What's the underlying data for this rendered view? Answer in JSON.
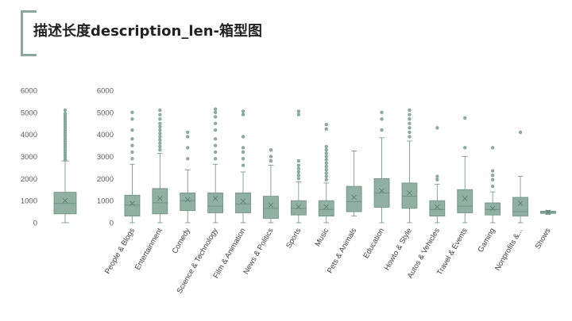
{
  "title": "描述长度description_len-箱型图",
  "colors": {
    "box_fill": "#8fb0a2",
    "box_stroke": "#6b8f7f",
    "accent": "#8aa89a"
  },
  "chart_data": [
    {
      "type": "box",
      "categories": [
        ""
      ],
      "ylim": [
        0,
        6000
      ],
      "yticks": [
        "0",
        "1000",
        "2000",
        "3000",
        "4000",
        "5000",
        "6000"
      ],
      "boxes": [
        {
          "min": 0,
          "q1": 400,
          "median": 870,
          "q3": 1380,
          "max": 2800,
          "mean": 1000,
          "outliers": [
            2850,
            2950,
            3050,
            3150,
            3250,
            3350,
            3450,
            3550,
            3650,
            3750,
            3850,
            3950,
            4050,
            4150,
            4250,
            4350,
            4450,
            4550,
            4650,
            4750,
            4850,
            4950,
            5100
          ]
        }
      ]
    },
    {
      "type": "box",
      "ylim": [
        0,
        6000
      ],
      "yticks": [
        "0",
        "1000",
        "2000",
        "3000",
        "4000",
        "5000",
        "6000"
      ],
      "categories": [
        "People & Blogs",
        "Entertainment",
        "Comedy",
        "Science & Technology",
        "Film & Animation",
        "News & Politics",
        "Sports",
        "Music",
        "Pets & Animals",
        "Education",
        "Howto & Style",
        "Autos & Vehicles",
        "Travel & Events",
        "Gaming",
        "Nonprofits &...",
        "Shows"
      ],
      "boxes": [
        {
          "min": 0,
          "q1": 300,
          "median": 800,
          "q3": 1250,
          "max": 2650,
          "mean": 880,
          "outliers": [
            2900,
            3200,
            3500,
            3800,
            4200,
            4700,
            5000
          ]
        },
        {
          "min": 0,
          "q1": 400,
          "median": 900,
          "q3": 1550,
          "max": 3150,
          "mean": 1100,
          "outliers": [
            3300,
            3450,
            3600,
            3750,
            3900,
            4050,
            4200,
            4350,
            4500,
            4700,
            4900,
            5100
          ]
        },
        {
          "min": 0,
          "q1": 550,
          "median": 1000,
          "q3": 1350,
          "max": 2400,
          "mean": 1050,
          "outliers": [
            2900,
            3400,
            3900,
            4100
          ]
        },
        {
          "min": 0,
          "q1": 450,
          "median": 750,
          "q3": 1350,
          "max": 2650,
          "mean": 1100,
          "outliers": [
            2900,
            3200,
            3500,
            3800,
            4200,
            4500,
            4800,
            5000,
            5150
          ]
        },
        {
          "min": 0,
          "q1": 450,
          "median": 850,
          "q3": 1350,
          "max": 2300,
          "mean": 980,
          "outliers": [
            2600,
            2900,
            3200,
            3400,
            3900,
            4900,
            5050
          ]
        },
        {
          "min": 0,
          "q1": 200,
          "median": 650,
          "q3": 1200,
          "max": 2600,
          "mean": 800,
          "outliers": [
            2800,
            3000,
            3300
          ]
        },
        {
          "min": 0,
          "q1": 350,
          "median": 650,
          "q3": 1000,
          "max": 1850,
          "mean": 720,
          "outliers": [
            2000,
            2150,
            2300,
            2450,
            2600,
            2800,
            4900,
            5050
          ]
        },
        {
          "min": 0,
          "q1": 300,
          "median": 600,
          "q3": 1000,
          "max": 1800,
          "mean": 720,
          "outliers": [
            1950,
            2100,
            2250,
            2400,
            2550,
            2700,
            2850,
            3000,
            3150,
            3300,
            3450,
            4250,
            4450
          ]
        },
        {
          "min": 300,
          "q1": 500,
          "median": 950,
          "q3": 1650,
          "max": 3250,
          "mean": 1150,
          "outliers": []
        },
        {
          "min": 0,
          "q1": 700,
          "median": 1350,
          "q3": 2000,
          "max": 3850,
          "mean": 1450,
          "outliers": [
            4200,
            4700,
            5000
          ]
        },
        {
          "min": 0,
          "q1": 650,
          "median": 1200,
          "q3": 1800,
          "max": 3700,
          "mean": 1350,
          "outliers": [
            3900,
            4100,
            4300,
            4500,
            4700,
            4900,
            5100
          ]
        },
        {
          "min": 0,
          "q1": 300,
          "median": 600,
          "q3": 1000,
          "max": 1750,
          "mean": 720,
          "outliers": [
            1950,
            2100,
            4300
          ]
        },
        {
          "min": 0,
          "q1": 450,
          "median": 750,
          "q3": 1500,
          "max": 3000,
          "mean": 1100,
          "outliers": [
            3400,
            4750
          ]
        },
        {
          "min": 0,
          "q1": 350,
          "median": 600,
          "q3": 900,
          "max": 1400,
          "mean": 650,
          "outliers": [
            1650,
            1950,
            2150,
            2350,
            3400
          ]
        },
        {
          "min": 0,
          "q1": 300,
          "median": 500,
          "q3": 1150,
          "max": 2100,
          "mean": 880,
          "outliers": [
            4100
          ]
        },
        {
          "min": 380,
          "q1": 420,
          "median": 480,
          "q3": 520,
          "max": 560,
          "mean": 480,
          "outliers": []
        }
      ]
    }
  ]
}
